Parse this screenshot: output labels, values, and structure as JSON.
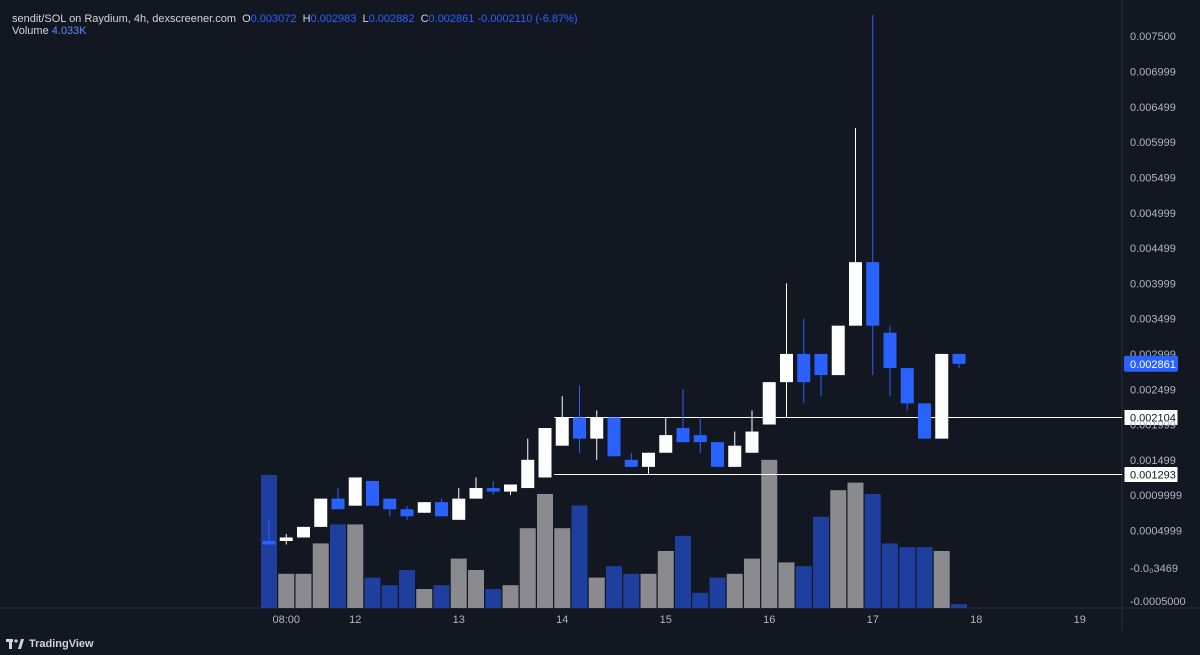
{
  "header": {
    "symbol": "sendit/SOL on Raydium, 4h, dexscreener.com",
    "open_label": "O",
    "open": "0.003072",
    "high_label": "H",
    "high": "0.002983",
    "low_label": "L",
    "low": "0.002882",
    "close_label": "C",
    "close": "0.002861",
    "change": "-0.0002110 (-6.87%)",
    "volume_label": "Volume",
    "volume": "4.033K"
  },
  "brand": {
    "name": "TradingView",
    "icon": "tradingview-logo-icon"
  },
  "colors": {
    "background": "#131722",
    "up": "#ffffff",
    "down": "#2962ff",
    "volume_up": "#8a8a8f",
    "volume_down": "#1e3f9e",
    "text": "#b2b5be",
    "line": "#ffffff",
    "last_price_bg": "#2962ff"
  },
  "chart_data": {
    "type": "candlestick",
    "price_range": [
      -0.0005,
      0.0079
    ],
    "y_tick_labels": [
      "0.007500",
      "0.006999",
      "0.006499",
      "0.005999",
      "0.005499",
      "0.004999",
      "0.004499",
      "0.003999",
      "0.003499",
      "0.002999",
      "0.002499",
      "0.001999",
      "0.001499",
      "0.0009999",
      "0.0004999",
      "-0.0₀3469",
      "-0.0005000"
    ],
    "y_tick_values": [
      0.0075,
      0.006999,
      0.006499,
      0.005999,
      0.005499,
      0.004999,
      0.004499,
      0.003999,
      0.003499,
      0.002999,
      0.002499,
      0.001999,
      0.001499,
      0.0009999,
      0.0004999,
      -3.469e-05,
      -0.0005
    ],
    "x_tick_labels": [
      "08:00",
      "12",
      "13",
      "14",
      "15",
      "16",
      "17",
      "18",
      "19"
    ],
    "x_tick_bar_index": [
      1,
      5,
      11,
      17,
      23,
      29,
      35,
      41,
      47
    ],
    "last_price_label": "0.002861",
    "horizontal_lines": [
      {
        "label": "0.002104",
        "value": 0.002104,
        "start_bar": 17
      },
      {
        "label": "0.001293",
        "value": 0.001293,
        "start_bar": 17
      }
    ],
    "candles": [
      {
        "o": 0.00035,
        "h": 0.00065,
        "l": 0.0003,
        "c": 0.0003
      },
      {
        "o": 0.00035,
        "h": 0.00045,
        "l": 0.0003,
        "c": 0.0004
      },
      {
        "o": 0.0004,
        "h": 0.00055,
        "l": 0.0004,
        "c": 0.00055
      },
      {
        "o": 0.00055,
        "h": 0.00095,
        "l": 0.00055,
        "c": 0.00095
      },
      {
        "o": 0.00095,
        "h": 0.0011,
        "l": 0.0008,
        "c": 0.0008
      },
      {
        "o": 0.00085,
        "h": 0.00125,
        "l": 0.00085,
        "c": 0.00125
      },
      {
        "o": 0.0012,
        "h": 0.0012,
        "l": 0.00085,
        "c": 0.00085
      },
      {
        "o": 0.00095,
        "h": 0.00095,
        "l": 0.0007,
        "c": 0.0008
      },
      {
        "o": 0.0008,
        "h": 0.00085,
        "l": 0.00065,
        "c": 0.0007
      },
      {
        "o": 0.00075,
        "h": 0.0009,
        "l": 0.00075,
        "c": 0.0009
      },
      {
        "o": 0.0009,
        "h": 0.00095,
        "l": 0.0007,
        "c": 0.0007
      },
      {
        "o": 0.00065,
        "h": 0.0011,
        "l": 0.00065,
        "c": 0.00095
      },
      {
        "o": 0.00095,
        "h": 0.00125,
        "l": 0.00095,
        "c": 0.0011
      },
      {
        "o": 0.0011,
        "h": 0.0012,
        "l": 0.001,
        "c": 0.00105
      },
      {
        "o": 0.00105,
        "h": 0.00115,
        "l": 0.001,
        "c": 0.00115
      },
      {
        "o": 0.0011,
        "h": 0.0018,
        "l": 0.0011,
        "c": 0.0015
      },
      {
        "o": 0.00125,
        "h": 0.00195,
        "l": 0.00125,
        "c": 0.00195
      },
      {
        "o": 0.0017,
        "h": 0.0024,
        "l": 0.0017,
        "c": 0.0021
      },
      {
        "o": 0.0021,
        "h": 0.00255,
        "l": 0.0016,
        "c": 0.0018
      },
      {
        "o": 0.0018,
        "h": 0.0022,
        "l": 0.0015,
        "c": 0.0021
      },
      {
        "o": 0.0021,
        "h": 0.0021,
        "l": 0.00155,
        "c": 0.00155
      },
      {
        "o": 0.0015,
        "h": 0.0016,
        "l": 0.0014,
        "c": 0.0014
      },
      {
        "o": 0.0014,
        "h": 0.0016,
        "l": 0.0013,
        "c": 0.0016
      },
      {
        "o": 0.0016,
        "h": 0.0021,
        "l": 0.0016,
        "c": 0.00185
      },
      {
        "o": 0.00195,
        "h": 0.0025,
        "l": 0.00175,
        "c": 0.00175
      },
      {
        "o": 0.00185,
        "h": 0.0021,
        "l": 0.0016,
        "c": 0.00175
      },
      {
        "o": 0.00175,
        "h": 0.00175,
        "l": 0.0014,
        "c": 0.0014
      },
      {
        "o": 0.0014,
        "h": 0.0019,
        "l": 0.0014,
        "c": 0.0017
      },
      {
        "o": 0.0016,
        "h": 0.0022,
        "l": 0.0016,
        "c": 0.0019
      },
      {
        "o": 0.002,
        "h": 0.0026,
        "l": 0.002,
        "c": 0.0026
      },
      {
        "o": 0.0026,
        "h": 0.004,
        "l": 0.0021,
        "c": 0.003
      },
      {
        "o": 0.003,
        "h": 0.0035,
        "l": 0.0023,
        "c": 0.0026
      },
      {
        "o": 0.003,
        "h": 0.003,
        "l": 0.0024,
        "c": 0.0027
      },
      {
        "o": 0.0027,
        "h": 0.0034,
        "l": 0.0027,
        "c": 0.0034
      },
      {
        "o": 0.0034,
        "h": 0.0062,
        "l": 0.0034,
        "c": 0.0043
      },
      {
        "o": 0.0043,
        "h": 0.0078,
        "l": 0.0027,
        "c": 0.0034
      },
      {
        "o": 0.0033,
        "h": 0.0034,
        "l": 0.0024,
        "c": 0.0028
      },
      {
        "o": 0.0028,
        "h": 0.0028,
        "l": 0.0022,
        "c": 0.0023
      },
      {
        "o": 0.0023,
        "h": 0.0023,
        "l": 0.0018,
        "c": 0.0018
      },
      {
        "o": 0.0018,
        "h": 0.003,
        "l": 0.0018,
        "c": 0.003
      },
      {
        "o": 0.003,
        "h": 0.003,
        "l": 0.0028,
        "c": 0.00286
      }
    ],
    "volume": [
      35,
      9,
      9,
      17,
      22,
      22,
      8,
      6,
      10,
      5,
      6,
      13,
      10,
      5,
      6,
      21,
      30,
      21,
      27,
      8,
      11,
      9,
      9,
      15,
      19,
      4,
      8,
      9,
      13,
      39,
      12,
      11,
      24,
      31,
      33,
      30,
      17,
      16,
      16,
      15,
      1
    ],
    "volume_max": 40
  }
}
